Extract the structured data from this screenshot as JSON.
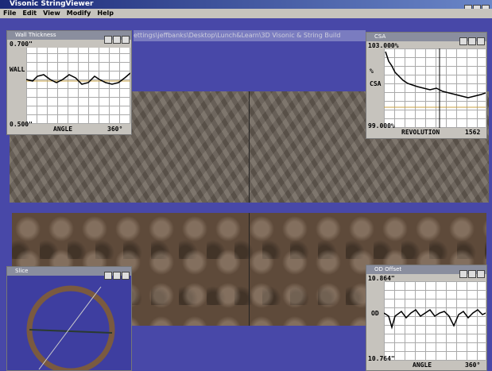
{
  "window": {
    "title": "Visonic StringViewer",
    "menu": [
      "File",
      "Edit",
      "View",
      "Modify",
      "Help"
    ],
    "path": "ettings\\jeffbanks\\Desktop\\Lunch&Learn\\3D Visonic & String Build"
  },
  "panels": {
    "wall_thickness": {
      "title": "Wall Thickness",
      "y_top": "0.700\"",
      "y_bottom": "0.500\"",
      "y_label": "WALL",
      "x_label": "ANGLE",
      "x_end": "360°"
    },
    "csa": {
      "title": "CSA",
      "y_top": "103.000%",
      "y_bottom": "99.000%",
      "y_label_1": "%",
      "y_label_2": "CSA",
      "x_label": "REVOLUTION",
      "x_end": "1562"
    },
    "slice": {
      "title": "Slice"
    },
    "od_offset": {
      "title": "OD Offset",
      "y_top": "10.864\"",
      "y_bottom": "10.764\"",
      "y_label": "OD",
      "x_label": "ANGLE",
      "x_end": "360°"
    }
  }
}
